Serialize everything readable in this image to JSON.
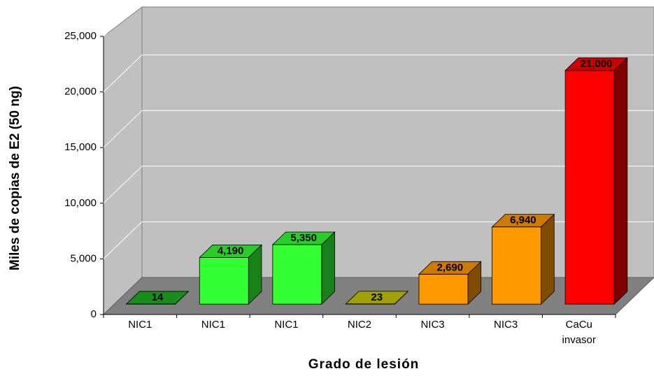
{
  "chart_data": {
    "type": "bar3d",
    "categories": [
      "NIC1",
      "NIC1",
      "NIC1",
      "NIC2",
      "NIC3",
      "NIC3",
      "CaCu invasor"
    ],
    "values": [
      14,
      4190,
      5350,
      23,
      2690,
      6940,
      21000
    ],
    "value_labels": [
      "14",
      "4,190",
      "5,350",
      "23",
      "2,690",
      "6,940",
      "21,000"
    ],
    "colors": [
      "#1fb01f",
      "#33ff33",
      "#33ff33",
      "#c8c800",
      "#ff9900",
      "#ff9900",
      "#ff0000"
    ],
    "ylim": [
      0,
      25000
    ],
    "yticks": [
      0,
      {
        "value": 5000,
        "label": "5,000"
      },
      {
        "value": 10000,
        "label": "10,000"
      },
      {
        "value": 15000,
        "label": "15,000"
      },
      {
        "value": 20000,
        "label": "20,000"
      },
      {
        "value": 25000,
        "label": "25,000"
      }
    ],
    "x_label": "Grado de lesión",
    "y_label": "Miles de copias de E2 (50 ng)",
    "grid": true
  }
}
